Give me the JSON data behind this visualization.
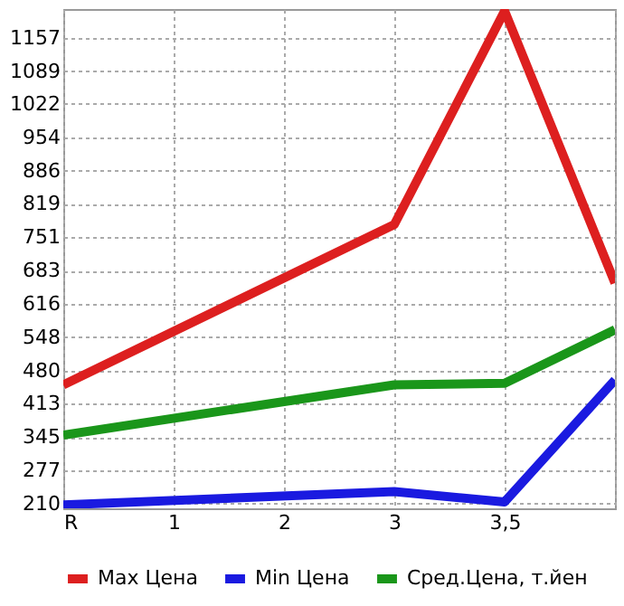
{
  "chart_data": {
    "type": "line",
    "categories": [
      "R",
      "1",
      "2",
      "3",
      "3,5",
      null
    ],
    "series": [
      {
        "name": "Max Цена",
        "color": "#dd1f1f",
        "values": [
          451,
          null,
          null,
          777,
          1211,
          658
        ]
      },
      {
        "name": "Min Цена",
        "color": "#1a1ae0",
        "values": [
          207,
          null,
          null,
          234,
          213,
          461
        ]
      },
      {
        "name": "Сред.Цена, т.йен",
        "color": "#1a961a",
        "values": [
          349,
          null,
          null,
          451,
          454,
          563
        ]
      }
    ],
    "ylim": [
      200,
      1215
    ],
    "yticks": [
      210,
      277,
      345,
      413,
      480,
      548,
      616,
      683,
      751,
      819,
      886,
      954,
      1022,
      1089,
      1157
    ],
    "grid": true,
    "legend": "bottom",
    "marker": "none",
    "line_style": "solid"
  }
}
